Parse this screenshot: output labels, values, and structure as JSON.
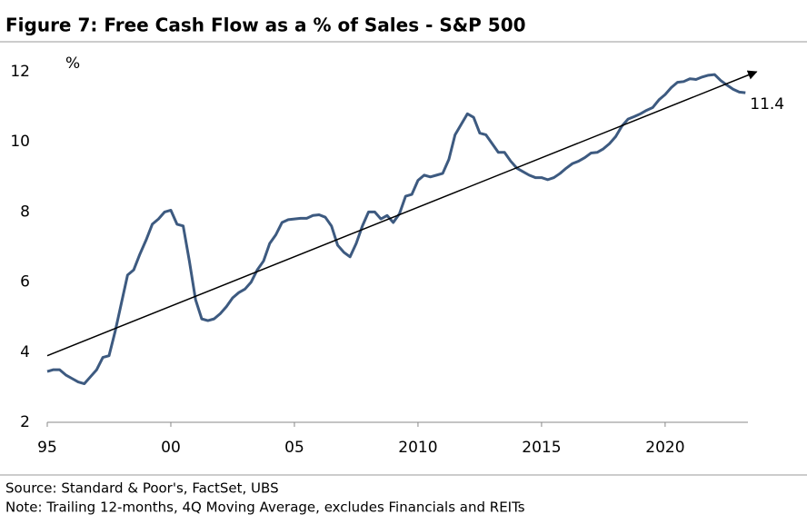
{
  "chart_data": {
    "type": "line",
    "title": "Figure 7: Free Cash Flow as a % of Sales - S&P 500",
    "ylabel": "%",
    "annotation": "11.4",
    "source": "Source: Standard & Poor's, FactSet, UBS",
    "note": "Note: Trailing 12-months, 4Q Moving Average, excludes Financials and REITs",
    "x": [
      1995,
      1995.25,
      1995.5,
      1995.75,
      1996,
      1996.25,
      1996.5,
      1996.75,
      1997,
      1997.25,
      1997.5,
      1997.75,
      1998,
      1998.25,
      1998.5,
      1998.75,
      1999,
      1999.25,
      1999.5,
      1999.75,
      2000,
      2000.25,
      2000.5,
      2000.75,
      2001,
      2001.25,
      2001.5,
      2001.75,
      2002,
      2002.25,
      2002.5,
      2002.75,
      2003,
      2003.25,
      2003.5,
      2003.75,
      2004,
      2004.25,
      2004.5,
      2004.75,
      2005,
      2005.25,
      2005.5,
      2005.75,
      2006,
      2006.25,
      2006.5,
      2006.75,
      2007,
      2007.25,
      2007.5,
      2007.75,
      2008,
      2008.25,
      2008.5,
      2008.75,
      2009,
      2009.25,
      2009.5,
      2009.75,
      2010,
      2010.25,
      2010.5,
      2010.75,
      2011,
      2011.25,
      2011.5,
      2011.75,
      2012,
      2012.25,
      2012.5,
      2012.75,
      2013,
      2013.25,
      2013.5,
      2013.75,
      2014,
      2014.25,
      2014.5,
      2014.75,
      2015,
      2015.25,
      2015.5,
      2015.75,
      2016,
      2016.25,
      2016.5,
      2016.75,
      2017,
      2017.25,
      2017.5,
      2017.75,
      2018,
      2018.25,
      2018.5,
      2018.75,
      2019,
      2019.25,
      2019.5,
      2019.75,
      2020,
      2020.25,
      2020.5,
      2020.75,
      2021,
      2021.25,
      2021.5,
      2021.75,
      2022,
      2022.25,
      2022.5,
      2022.75,
      2023,
      2023.25
    ],
    "series": [
      {
        "color": "#3d5a80",
        "values": [
          3.45,
          3.5,
          3.5,
          3.35,
          3.25,
          3.15,
          3.1,
          3.3,
          3.5,
          3.85,
          3.9,
          4.6,
          5.4,
          6.2,
          6.35,
          6.8,
          7.2,
          7.65,
          7.8,
          8.0,
          8.05,
          7.65,
          7.6,
          6.6,
          5.5,
          4.95,
          4.9,
          4.95,
          5.1,
          5.3,
          5.55,
          5.7,
          5.8,
          6.0,
          6.35,
          6.6,
          7.1,
          7.35,
          7.7,
          7.78,
          7.8,
          7.82,
          7.82,
          7.9,
          7.92,
          7.85,
          7.6,
          7.05,
          6.85,
          6.72,
          7.1,
          7.6,
          8.0,
          8.0,
          7.8,
          7.9,
          7.7,
          7.95,
          8.45,
          8.5,
          8.9,
          9.05,
          9.0,
          9.05,
          9.1,
          9.5,
          10.2,
          10.5,
          10.8,
          10.7,
          10.25,
          10.2,
          9.95,
          9.7,
          9.7,
          9.45,
          9.25,
          9.15,
          9.05,
          8.98,
          8.98,
          8.92,
          8.98,
          9.1,
          9.25,
          9.38,
          9.45,
          9.55,
          9.68,
          9.7,
          9.8,
          9.95,
          10.15,
          10.45,
          10.65,
          10.72,
          10.8,
          10.9,
          10.98,
          11.2,
          11.35,
          11.55,
          11.7,
          11.72,
          11.8,
          11.78,
          11.85,
          11.9,
          11.92,
          11.75,
          11.62,
          11.5,
          11.42,
          11.4
        ]
      }
    ],
    "trend": {
      "color": "#000000",
      "x": [
        1995,
        2023.7
      ],
      "values": [
        3.9,
        12.0
      ]
    },
    "xlim": [
      1995,
      2023.35
    ],
    "ylim": [
      2,
      12
    ],
    "xticks": [
      {
        "value": 1995,
        "label": "95"
      },
      {
        "value": 2000,
        "label": "00"
      },
      {
        "value": 2005,
        "label": "05"
      },
      2010,
      2015,
      2020
    ],
    "yticks": [
      2,
      4,
      6,
      8,
      10,
      12
    ]
  }
}
